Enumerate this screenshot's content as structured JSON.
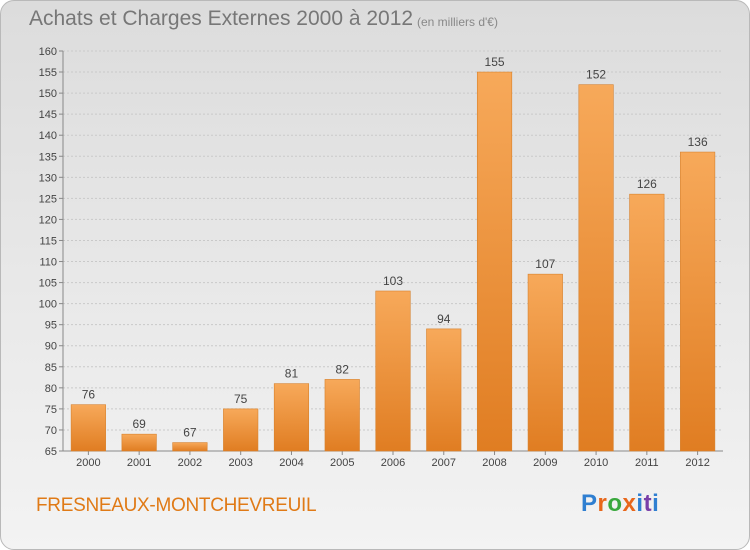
{
  "header": {
    "title": "Achats et Charges Externes 2000 à 2012",
    "subtitle": "(en milliers d'€)"
  },
  "footer": {
    "commune": "FRESNEAUX-MONTCHEVREUIL",
    "logo_text": "Proxiti",
    "logo_colors": [
      "#2f7fd1",
      "#e8671b",
      "#39a83d",
      "#e8671b",
      "#2f7fd1",
      "#7a3fa8",
      "#2f7fd1"
    ]
  },
  "colors": {
    "bar_top": "#f7a95a",
    "bar_bottom": "#e07d22",
    "grid": "#c9c9c9",
    "commune_text": "#e07a16"
  },
  "chart_data": {
    "type": "bar",
    "title": "Achats et Charges Externes 2000 à 2012",
    "subtitle": "(en milliers d'€)",
    "categories": [
      "2000",
      "2001",
      "2002",
      "2003",
      "2004",
      "2005",
      "2006",
      "2007",
      "2008",
      "2009",
      "2010",
      "2011",
      "2012"
    ],
    "values": [
      76,
      69,
      67,
      75,
      81,
      82,
      103,
      94,
      155,
      107,
      152,
      126,
      136
    ],
    "ylim": [
      65,
      160
    ],
    "ytick_step": 5,
    "grid": true,
    "xlabel": "",
    "ylabel": ""
  }
}
